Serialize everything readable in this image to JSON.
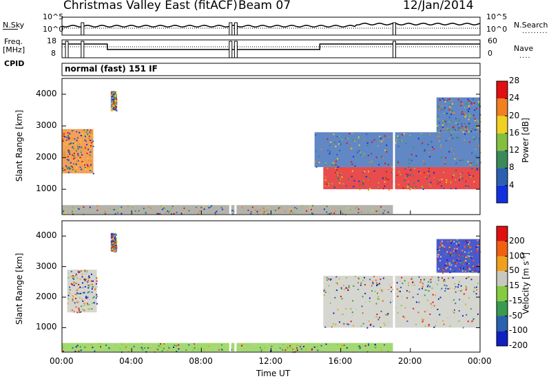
{
  "header": {
    "station": "Christmas Valley East (fitACF)",
    "beam": "Beam 07",
    "date": "12/Jan/2014"
  },
  "summary_panel": {
    "nsky_label": "N.Sky",
    "nsearch_label": "N.Search",
    "nsky_ticks": [
      "10^5",
      "10^0"
    ],
    "freq_label_line1": "Freq.",
    "freq_label_line2": "[MHz]",
    "freq_ticks": [
      "18",
      "8"
    ],
    "nave_label": "Nave",
    "nave_ticks": [
      "60",
      "0"
    ],
    "cpid_label": "CPID",
    "cpid_value": "normal (fast) 151 IF"
  },
  "time_axis": {
    "ticks": [
      "00:00",
      "04:00",
      "08:00",
      "12:00",
      "16:00",
      "20:00",
      "00:00"
    ],
    "label": "Time UT"
  },
  "chart_data": [
    {
      "type": "heatmap",
      "name": "power",
      "ylabel": "Slant Range [km]",
      "yticks": [
        "1000",
        "2000",
        "3000",
        "4000"
      ],
      "ylim": [
        200,
        4500
      ],
      "xlim_hours": [
        0,
        24
      ],
      "colorbar_label": "Power [dB]",
      "colorbar_ticks": [
        "4",
        "8",
        "12",
        "16",
        "20",
        "24",
        "28"
      ],
      "colorbar_colors": [
        "#1030e0",
        "#2c5fb0",
        "#3a8a5a",
        "#84c040",
        "#f0d020",
        "#f08020",
        "#e01010"
      ],
      "regions": [
        {
          "t0": 0.0,
          "t1": 1.8,
          "r0": 1500,
          "r1": 2900,
          "level": "medium"
        },
        {
          "t0": 2.8,
          "t1": 3.1,
          "r0": 3500,
          "r1": 4100,
          "level": "low"
        },
        {
          "t0": 15.0,
          "t1": 24.0,
          "r0": 1000,
          "r1": 1700,
          "level": "high"
        },
        {
          "t0": 14.5,
          "t1": 24.0,
          "r0": 1700,
          "r1": 2800,
          "level": "low"
        },
        {
          "t0": 21.5,
          "t1": 24.0,
          "r0": 2800,
          "r1": 3900,
          "level": "low"
        },
        {
          "t0": 0.0,
          "t1": 19.0,
          "r0": 220,
          "r1": 500,
          "level": "groundscatter"
        }
      ]
    },
    {
      "type": "heatmap",
      "name": "velocity",
      "ylabel": "Slant Range [km]",
      "yticks": [
        "1000",
        "2000",
        "3000",
        "4000"
      ],
      "ylim": [
        200,
        4500
      ],
      "xlim_hours": [
        0,
        24
      ],
      "colorbar_label": "Velocity [m s^-1]",
      "colorbar_ticks": [
        "200",
        "100",
        "50",
        "15",
        "-15",
        "-50",
        "-100",
        "-200"
      ],
      "colorbar_colors": [
        "#1020c0",
        "#2a60b0",
        "#3a9a50",
        "#84cc40",
        "#c8c8c0",
        "#f0a020",
        "#f06010",
        "#e01010"
      ],
      "regions": [
        {
          "t0": 0.3,
          "t1": 2.0,
          "r0": 1500,
          "r1": 2900,
          "level": "grey"
        },
        {
          "t0": 2.8,
          "t1": 3.1,
          "r0": 3500,
          "r1": 4100,
          "level": "blue"
        },
        {
          "t0": 15.0,
          "t1": 24.0,
          "r0": 1000,
          "r1": 2200,
          "level": "grey"
        },
        {
          "t0": 15.0,
          "t1": 24.0,
          "r0": 2200,
          "r1": 2700,
          "level": "grey"
        },
        {
          "t0": 21.5,
          "t1": 24.0,
          "r0": 2800,
          "r1": 3900,
          "level": "blue"
        },
        {
          "t0": 0.0,
          "t1": 19.0,
          "r0": 220,
          "r1": 500,
          "level": "green"
        }
      ]
    }
  ]
}
